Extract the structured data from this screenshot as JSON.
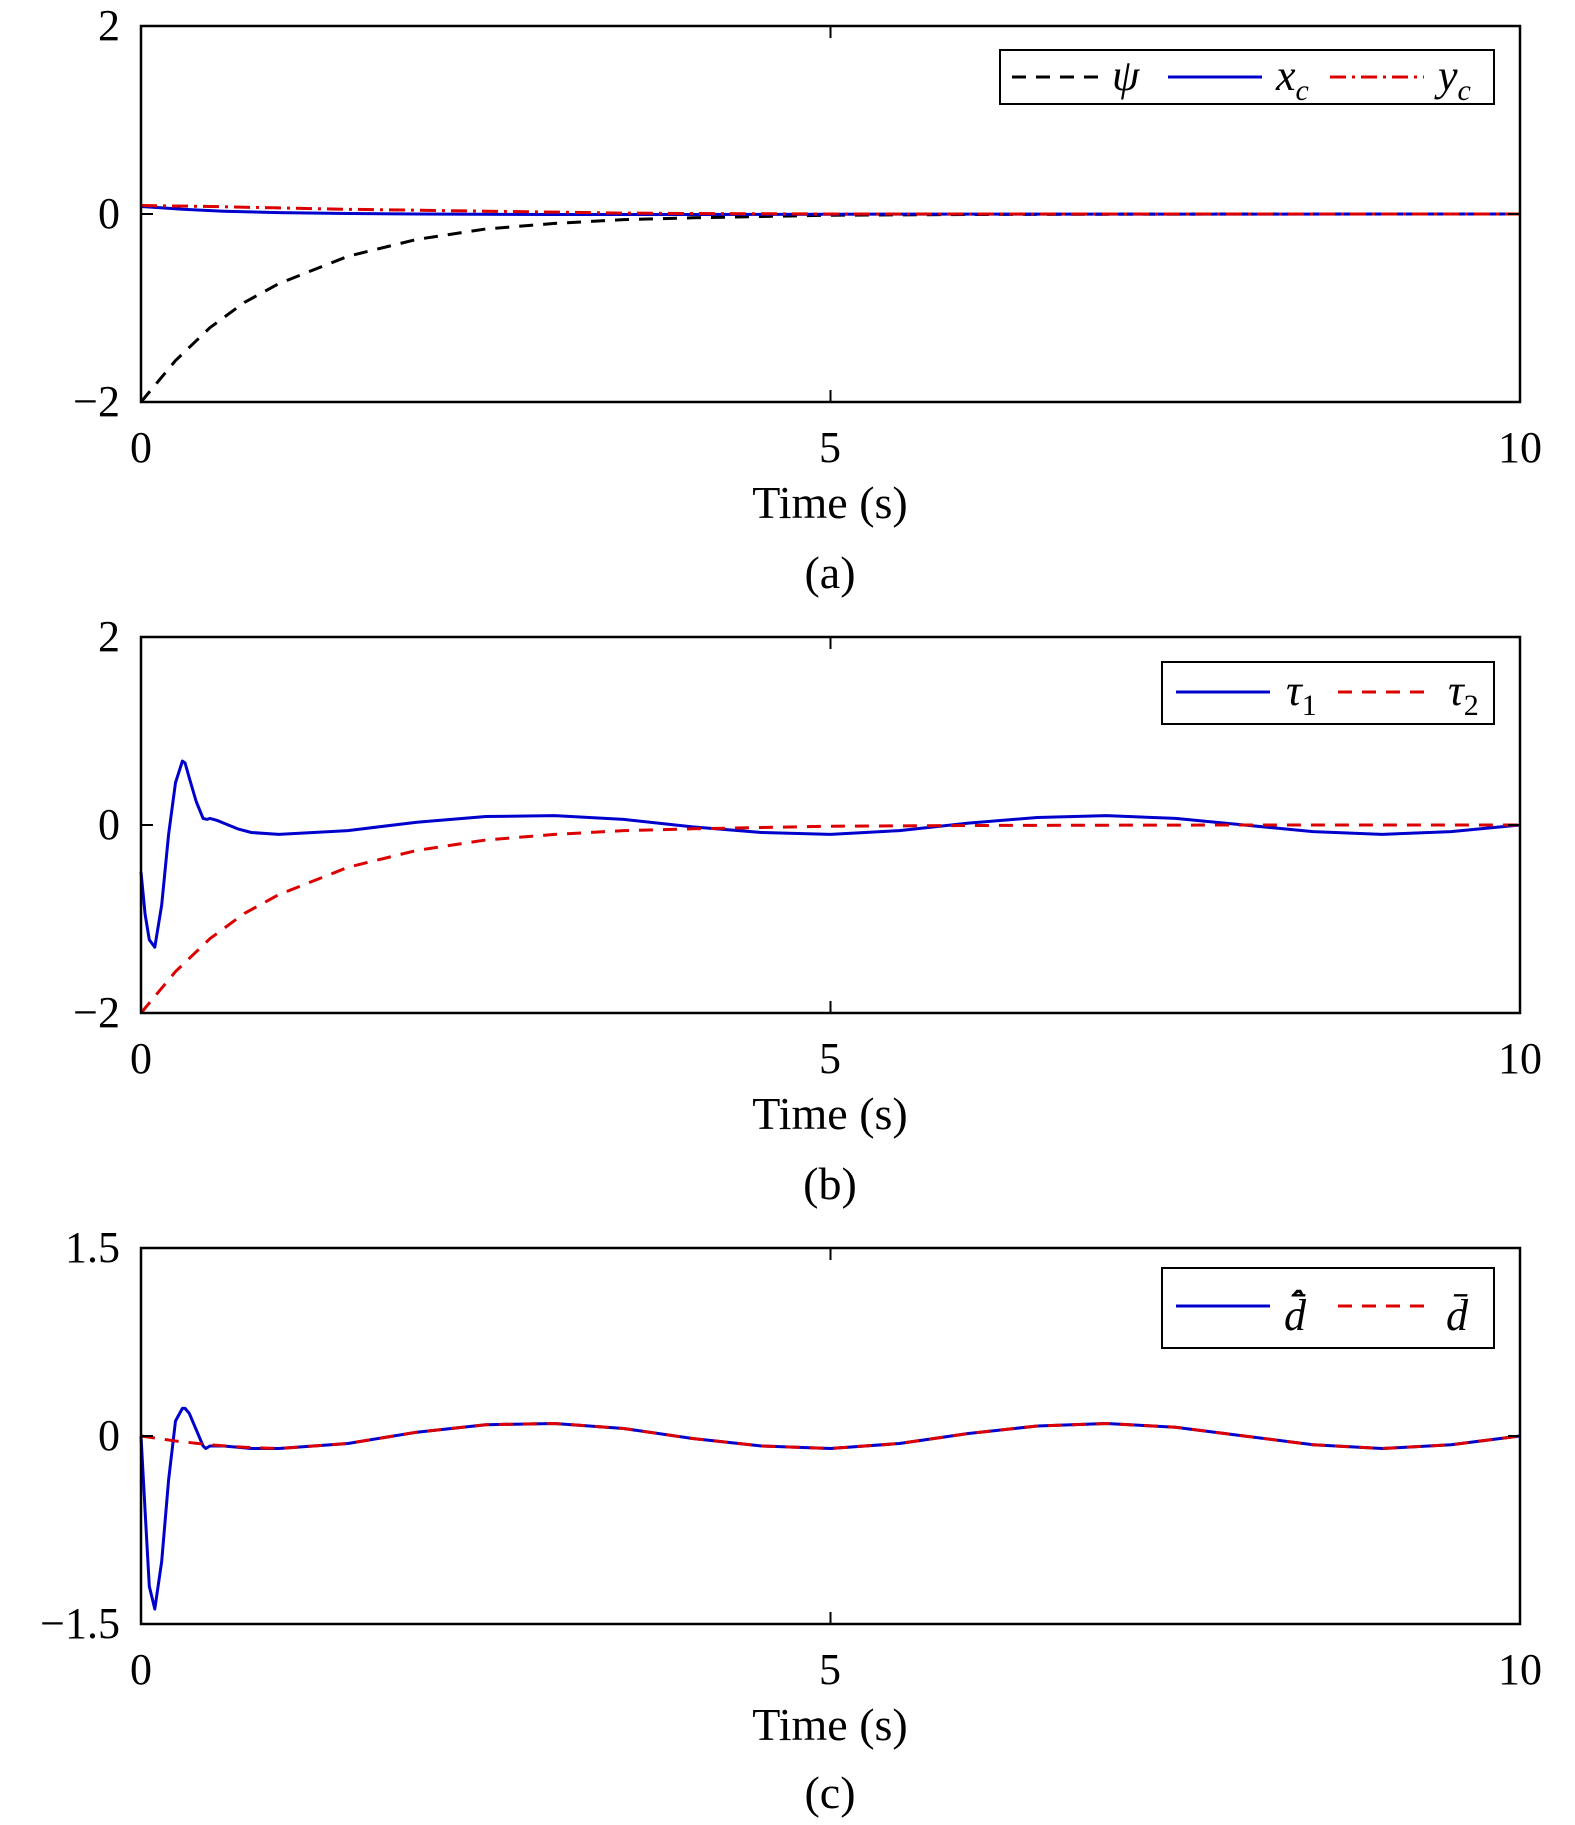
{
  "colors": {
    "black": "#000000",
    "blue": "#0000cc",
    "red": "#dd0000"
  },
  "chart_data": [
    {
      "type": "line",
      "caption": "(a)",
      "xlabel": "Time (s)",
      "ylabel": "",
      "xlim": [
        0,
        10
      ],
      "ylim": [
        -2,
        2
      ],
      "xticks": [
        0,
        5,
        10
      ],
      "xtick_labels": [
        "0",
        "5",
        "10"
      ],
      "yticks": [
        -2,
        0,
        2
      ],
      "ytick_labels": [
        "−2",
        "0",
        "2"
      ],
      "grid": false,
      "legend_position": "top-right",
      "series": [
        {
          "name": "ψ",
          "color": "#000000",
          "style": "dashed",
          "x": [
            0,
            0.25,
            0.5,
            0.75,
            1,
            1.5,
            2,
            2.5,
            3,
            3.5,
            4,
            5,
            6,
            7,
            8,
            10
          ],
          "y": [
            -2.0,
            -1.56,
            -1.21,
            -0.94,
            -0.74,
            -0.45,
            -0.27,
            -0.16,
            -0.1,
            -0.06,
            -0.04,
            -0.013,
            -0.005,
            -0.002,
            0,
            0
          ]
        },
        {
          "name": "x_c",
          "color": "#0000cc",
          "style": "solid",
          "x": [
            0,
            0.1,
            0.3,
            0.6,
            1,
            1.5,
            2,
            3,
            4,
            5,
            10
          ],
          "y": [
            0.08,
            0.07,
            0.05,
            0.03,
            0.015,
            0.005,
            0.0,
            -0.005,
            -0.005,
            -0.002,
            0
          ]
        },
        {
          "name": "y_c",
          "color": "#dd0000",
          "style": "dashdot",
          "x": [
            0,
            0.5,
            1,
            1.5,
            2,
            2.5,
            3,
            3.5,
            4,
            5,
            6,
            10
          ],
          "y": [
            0.09,
            0.08,
            0.065,
            0.05,
            0.04,
            0.03,
            0.02,
            0.01,
            0.005,
            0.0,
            0,
            0
          ]
        }
      ]
    },
    {
      "type": "line",
      "caption": "(b)",
      "xlabel": "Time (s)",
      "ylabel": "",
      "xlim": [
        0,
        10
      ],
      "ylim": [
        -2,
        2
      ],
      "xticks": [
        0,
        5,
        10
      ],
      "xtick_labels": [
        "0",
        "5",
        "10"
      ],
      "yticks": [
        -2,
        0,
        2
      ],
      "ytick_labels": [
        "−2",
        "0",
        "2"
      ],
      "grid": false,
      "legend_position": "top-right",
      "series": [
        {
          "name": "τ1",
          "color": "#0000cc",
          "style": "solid",
          "x": [
            0,
            0.03,
            0.06,
            0.1,
            0.15,
            0.2,
            0.25,
            0.3,
            0.32,
            0.35,
            0.4,
            0.45,
            0.48,
            0.5,
            0.55,
            0.6,
            0.7,
            0.8,
            1.0,
            1.5,
            2.0,
            2.5,
            3.0,
            3.5,
            4.0,
            4.5,
            5.0,
            5.5,
            6.0,
            6.5,
            7.0,
            7.5,
            8.0,
            8.5,
            9.0,
            9.5,
            10.0
          ],
          "y": [
            -0.5,
            -0.95,
            -1.22,
            -1.3,
            -0.85,
            -0.1,
            0.45,
            0.68,
            0.66,
            0.5,
            0.25,
            0.07,
            0.06,
            0.07,
            0.05,
            0.02,
            -0.04,
            -0.08,
            -0.1,
            -0.06,
            0.03,
            0.09,
            0.1,
            0.06,
            -0.02,
            -0.08,
            -0.1,
            -0.06,
            0.02,
            0.08,
            0.1,
            0.07,
            0.0,
            -0.07,
            -0.1,
            -0.07,
            0.0
          ]
        },
        {
          "name": "τ2",
          "color": "#dd0000",
          "style": "dashed",
          "x": [
            0,
            0.25,
            0.5,
            0.75,
            1,
            1.5,
            2,
            2.5,
            3,
            3.5,
            4,
            5,
            6,
            7,
            8,
            10
          ],
          "y": [
            -2.0,
            -1.56,
            -1.21,
            -0.94,
            -0.74,
            -0.45,
            -0.27,
            -0.16,
            -0.1,
            -0.06,
            -0.04,
            -0.013,
            -0.005,
            -0.002,
            0,
            0
          ]
        }
      ]
    },
    {
      "type": "line",
      "caption": "(c)",
      "xlabel": "Time (s)",
      "ylabel": "",
      "xlim": [
        0,
        10
      ],
      "ylim": [
        -1.5,
        1.5
      ],
      "xticks": [
        0,
        5,
        10
      ],
      "xtick_labels": [
        "0",
        "5",
        "10"
      ],
      "yticks": [
        -1.5,
        0,
        1.5
      ],
      "ytick_labels": [
        "−1.5",
        "0",
        "1.5"
      ],
      "grid": false,
      "legend_position": "top-right",
      "series": [
        {
          "name": "d̂̄",
          "color": "#0000cc",
          "style": "solid",
          "x": [
            0,
            0.03,
            0.06,
            0.1,
            0.15,
            0.2,
            0.25,
            0.3,
            0.32,
            0.35,
            0.4,
            0.45,
            0.47,
            0.5,
            0.6,
            0.8,
            1.0,
            1.5,
            2.0,
            2.5,
            3.0,
            3.5,
            4.0,
            4.5,
            5.0,
            5.5,
            6.0,
            6.5,
            7.0,
            7.5,
            8.0,
            8.5,
            9.0,
            9.5,
            10.0
          ],
          "y": [
            0.0,
            -0.6,
            -1.2,
            -1.38,
            -1.0,
            -0.35,
            0.12,
            0.22,
            0.22,
            0.18,
            0.05,
            -0.08,
            -0.1,
            -0.08,
            -0.08,
            -0.1,
            -0.1,
            -0.06,
            0.03,
            0.09,
            0.1,
            0.06,
            -0.02,
            -0.08,
            -0.1,
            -0.06,
            0.02,
            0.08,
            0.1,
            0.07,
            0.0,
            -0.07,
            -0.1,
            -0.07,
            0.0
          ]
        },
        {
          "name": "d̄",
          "color": "#dd0000",
          "style": "dashed",
          "x": [
            0,
            0.25,
            0.5,
            0.75,
            1.0,
            1.5,
            2.0,
            2.5,
            3.0,
            3.5,
            4.0,
            4.5,
            5.0,
            5.5,
            6.0,
            6.5,
            7.0,
            7.5,
            8.0,
            8.5,
            9.0,
            9.5,
            10.0
          ],
          "y": [
            0.0,
            -0.04,
            -0.07,
            -0.09,
            -0.1,
            -0.06,
            0.03,
            0.09,
            0.1,
            0.06,
            -0.02,
            -0.08,
            -0.1,
            -0.06,
            0.02,
            0.08,
            0.1,
            0.07,
            0.0,
            -0.07,
            -0.1,
            -0.07,
            0.0
          ]
        }
      ]
    }
  ]
}
